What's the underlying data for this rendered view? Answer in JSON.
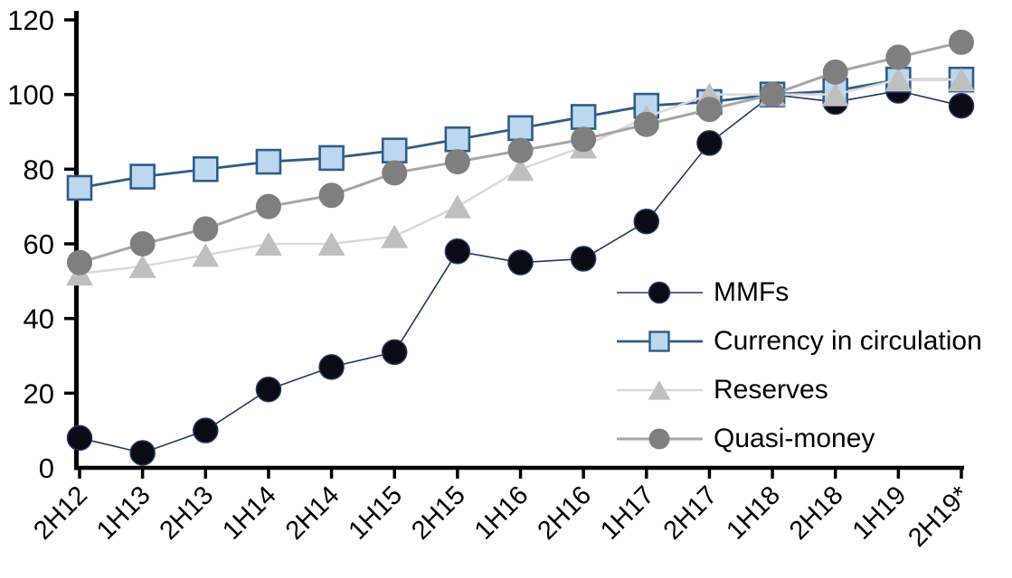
{
  "chart_data": {
    "type": "line",
    "title": "",
    "xlabel": "",
    "ylabel": "",
    "categories": [
      "2H12",
      "1H13",
      "2H13",
      "1H14",
      "2H14",
      "1H15",
      "2H15",
      "1H16",
      "2H16",
      "1H17",
      "2H17",
      "1H18",
      "2H18",
      "1H19",
      "2H19*"
    ],
    "series": [
      {
        "name": "MMFs",
        "marker": "circle",
        "marker_size": 27,
        "marker_fill": "#0B0B15",
        "marker_stroke": "#1F3864",
        "line_color": "#1F3864",
        "line_width": 1.6,
        "values": [
          8,
          4,
          10,
          21,
          27,
          31,
          58,
          55,
          56,
          66,
          87,
          100,
          98,
          101,
          97
        ]
      },
      {
        "name": "Currency in circulation",
        "marker": "square",
        "marker_size": 26,
        "marker_fill": "#BDD7EE",
        "marker_stroke": "#2E5C8A",
        "line_color": "#2E5C8A",
        "line_width": 2.8,
        "values": [
          75,
          78,
          80,
          82,
          83,
          85,
          88,
          91,
          94,
          97,
          98,
          100,
          101,
          104,
          104
        ]
      },
      {
        "name": "Reserves",
        "marker": "triangle",
        "marker_size": 28,
        "marker_fill": "#BFBFBF",
        "marker_stroke": "",
        "line_color": "#D9D9D9",
        "line_width": 2.5,
        "values": [
          52,
          54,
          57,
          60,
          60,
          62,
          70,
          80,
          86,
          94,
          100,
          100,
          100,
          104,
          104
        ]
      },
      {
        "name": "Quasi-money",
        "marker": "circle",
        "marker_size": 28,
        "marker_fill": "#7F7F7F",
        "marker_stroke": "",
        "line_color": "#A6A6A6",
        "line_width": 3,
        "values": [
          55,
          60,
          64,
          70,
          73,
          79,
          82,
          85,
          88,
          92,
          96,
          100,
          106,
          110,
          114
        ]
      }
    ],
    "ylim": [
      0,
      120
    ],
    "yticks": [
      0,
      20,
      40,
      60,
      80,
      100,
      120
    ],
    "y_tick_labels": [
      "0",
      "20",
      "40",
      "60",
      "80",
      "100",
      "120"
    ],
    "grid": false,
    "legend_position": "inside-right",
    "axis_color": "#000000",
    "text_color": "#000000",
    "background": "#FFFFFF"
  }
}
